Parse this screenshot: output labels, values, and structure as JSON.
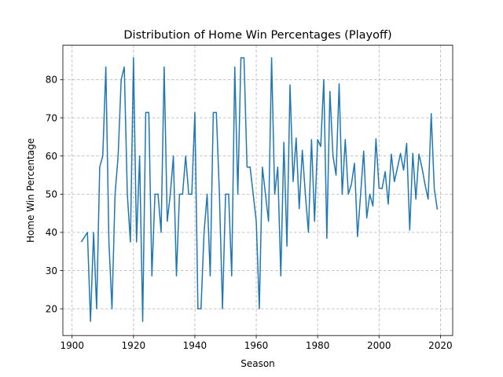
{
  "chart_data": {
    "type": "line",
    "title": "Distribution of Home Win Percentages (Playoff)",
    "xlabel": "Season",
    "ylabel": "Home Win Percentage",
    "xlim": [
      1897,
      2024
    ],
    "ylim": [
      13,
      89
    ],
    "xticks": [
      1900,
      1920,
      1940,
      1960,
      1980,
      2000,
      2020
    ],
    "yticks": [
      20,
      30,
      40,
      50,
      60,
      70,
      80
    ],
    "grid": true,
    "line_color": "#1f77b4",
    "series": [
      {
        "x": [
          1903,
          1905,
          1906,
          1907,
          1908,
          1909,
          1910,
          1911,
          1912,
          1913,
          1914,
          1915,
          1916,
          1917,
          1918,
          1919,
          1920,
          1921,
          1922,
          1923,
          1924,
          1925,
          1926,
          1927,
          1928,
          1929,
          1930,
          1931,
          1932,
          1933,
          1934,
          1935,
          1936,
          1937,
          1938,
          1939,
          1940,
          1941,
          1942,
          1943,
          1944,
          1945,
          1946,
          1947,
          1948,
          1949,
          1950,
          1951,
          1952,
          1953,
          1954,
          1955,
          1956,
          1957,
          1958,
          1959,
          1960,
          1961,
          1962,
          1963,
          1964,
          1965,
          1966,
          1967,
          1968,
          1969,
          1970,
          1971,
          1972,
          1973,
          1974,
          1975,
          1976,
          1977,
          1978,
          1979,
          1980,
          1981,
          1982,
          1983,
          1984,
          1985,
          1986,
          1987,
          1988,
          1989,
          1990,
          1991,
          1992,
          1993,
          1994,
          1995,
          1996,
          1997,
          1998,
          1999,
          2000,
          2001,
          2002,
          2003,
          2004,
          2005,
          2006,
          2007,
          2008,
          2009,
          2010,
          2011,
          2012,
          2013,
          2014,
          2015,
          2016,
          2017,
          2018,
          2019
        ],
        "y": [
          37.5,
          40,
          16.7,
          40,
          20,
          57.1,
          60,
          83.3,
          37.5,
          20,
          50,
          60,
          80,
          83.3,
          50,
          37.5,
          85.7,
          37.5,
          60,
          16.7,
          71.4,
          71.4,
          28.6,
          50,
          50,
          40,
          83.3,
          42.9,
          50,
          60,
          28.6,
          50,
          50,
          60,
          50,
          50,
          71.4,
          20,
          20,
          40,
          50,
          28.6,
          71.4,
          71.4,
          50,
          20,
          50,
          50,
          28.6,
          83.3,
          50,
          85.7,
          85.7,
          57.1,
          57.1,
          50,
          42.9,
          20,
          57.1,
          50,
          42.9,
          85.7,
          50,
          57.1,
          28.6,
          63.6,
          36.4,
          78.6,
          53.3,
          64.7,
          46.2,
          61.5,
          50,
          40,
          64.3,
          42.9,
          64.3,
          62.5,
          80,
          38.5,
          76.9,
          60,
          55,
          78.9,
          50,
          64.3,
          50,
          52.6,
          58.1,
          38.9,
          50,
          61.3,
          43.8,
          50,
          46.9,
          64.5,
          51.6,
          51.5,
          55.9,
          47.4,
          60.5,
          53.3,
          56.9,
          60.7,
          56.3,
          63.3,
          40.6,
          60.7,
          48.7,
          60.5,
          56.9,
          52.5,
          48.7,
          71.1,
          51.4,
          46
        ]
      }
    ]
  }
}
